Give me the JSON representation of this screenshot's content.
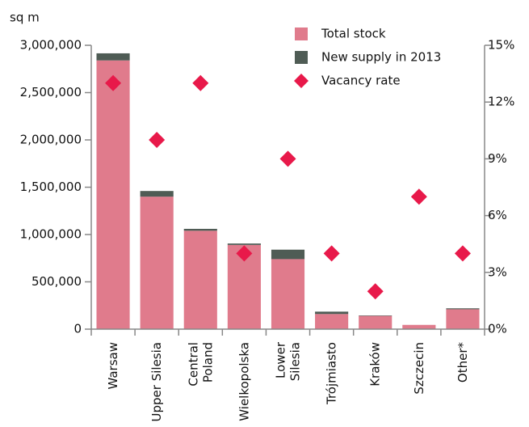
{
  "chart_data": {
    "type": "bar",
    "y_unit_label": "sq m",
    "categories": [
      "Warsaw",
      "Upper Silesia",
      "Central\nPoland",
      "Wielkopolska",
      "Lower\nSilesia",
      "Trójmiasto",
      "Kraków",
      "Szczecin",
      "Other*"
    ],
    "series": [
      {
        "name": "Total stock",
        "color": "#e07b8c",
        "values": [
          2840000,
          1400000,
          1040000,
          890000,
          740000,
          160000,
          140000,
          45000,
          210000
        ]
      },
      {
        "name": "New supply in 2013",
        "color": "#4f5c55",
        "values": [
          75000,
          60000,
          20000,
          15000,
          100000,
          25000,
          5000,
          0,
          10000
        ]
      },
      {
        "name": "Vacancy rate",
        "color": "#e8194a",
        "type": "scatter",
        "axis": "y2",
        "values": [
          13,
          10,
          13,
          4,
          9,
          4,
          2,
          7,
          4
        ]
      }
    ],
    "ylim": [
      0,
      3000000
    ],
    "yticks": [
      {
        "value": 0,
        "label": "0"
      },
      {
        "value": 500000,
        "label": "500,000"
      },
      {
        "value": 1000000,
        "label": "1,000,000"
      },
      {
        "value": 1500000,
        "label": "1,500,000"
      },
      {
        "value": 2000000,
        "label": "2,000,000"
      },
      {
        "value": 2500000,
        "label": "2,500,000"
      },
      {
        "value": 3000000,
        "label": "3,000,000"
      }
    ],
    "y2lim": [
      0,
      15
    ],
    "y2ticks": [
      {
        "value": 0,
        "label": "0%"
      },
      {
        "value": 3,
        "label": "3%"
      },
      {
        "value": 6,
        "label": "6%"
      },
      {
        "value": 9,
        "label": "9%"
      },
      {
        "value": 12,
        "label": "12%"
      },
      {
        "value": 15,
        "label": "15%"
      }
    ],
    "legend": "top-right",
    "stacked": true
  }
}
